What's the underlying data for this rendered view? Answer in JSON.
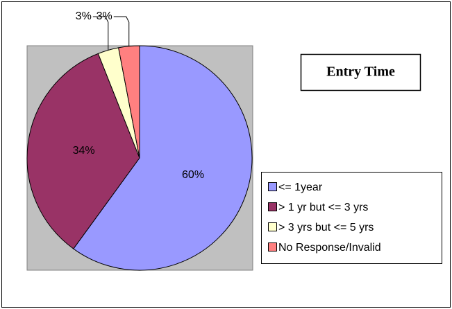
{
  "chart_data": {
    "type": "pie",
    "title": "Entry Time",
    "categories": [
      "<= 1year",
      "> 1 yr but <= 3 yrs",
      "> 3 yrs but <= 5 yrs",
      "No Response/Invalid"
    ],
    "values": [
      60,
      34,
      3,
      3
    ],
    "value_labels": [
      "60%",
      "34%",
      "3%",
      "3%"
    ],
    "colors": [
      "#9999ff",
      "#993366",
      "#ffffcc",
      "#ff8080"
    ],
    "legend": "right"
  }
}
